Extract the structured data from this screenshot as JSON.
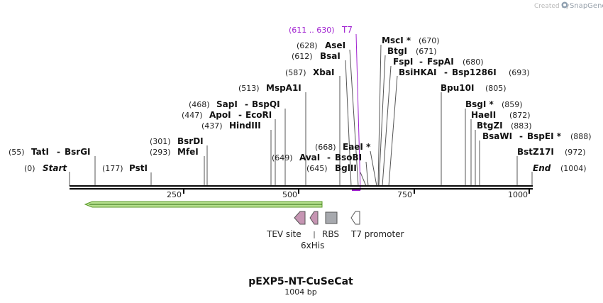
{
  "credit": {
    "prefix": "Created by",
    "brand": "SnapGene"
  },
  "map": {
    "name": "pEXP5-NT-CuSeCat",
    "length_label": "1004 bp",
    "length": 1004,
    "ticks": [
      {
        "label": "250"
      },
      {
        "label": "500"
      },
      {
        "label": "750"
      },
      {
        "label": "1000"
      }
    ]
  },
  "primer": {
    "name": "T7",
    "range": "(611 .. 630)",
    "color": "#a020d0"
  },
  "enzymes": [
    {
      "id": "start",
      "name": "Start",
      "pos": "(0)"
    },
    {
      "id": "tati",
      "name": "TatI",
      "sep": "-",
      "name2": "BsrGI",
      "pos": "(55)"
    },
    {
      "id": "psti",
      "name": "PstI",
      "pos": "(177)"
    },
    {
      "id": "mfei",
      "name": "MfeI",
      "pos": "(293)"
    },
    {
      "id": "bsrdi",
      "name": "BsrDI",
      "pos": "(301)"
    },
    {
      "id": "hindiii",
      "name": "HindIII",
      "pos": "(437)"
    },
    {
      "id": "apoi",
      "name": "ApoI",
      "sep": "-",
      "name2": "EcoRI",
      "pos": "(447)"
    },
    {
      "id": "sapi",
      "name": "SapI",
      "sep": "-",
      "name2": "BspQI",
      "pos": "(468)"
    },
    {
      "id": "mspa1i",
      "name": "MspA1I",
      "pos": "(513)"
    },
    {
      "id": "xbai",
      "name": "XbaI",
      "pos": "(587)"
    },
    {
      "id": "bsai",
      "name": "BsaI",
      "pos": "(612)"
    },
    {
      "id": "asei",
      "name": "AseI",
      "pos": "(628)"
    },
    {
      "id": "bglii",
      "name": "BglII",
      "pos": "(645)"
    },
    {
      "id": "avai",
      "name": "AvaI",
      "sep": "-",
      "name2": "BsoBI",
      "pos": "(649)"
    },
    {
      "id": "eaei",
      "name": "EaeI *",
      "pos": "(668)"
    },
    {
      "id": "msci",
      "name": "MscI *",
      "pos": "(670)"
    },
    {
      "id": "btgi",
      "name": "BtgI",
      "pos": "(671)"
    },
    {
      "id": "fspi",
      "name": "FspI",
      "sep": "-",
      "name2": "FspAI",
      "pos": "(680)"
    },
    {
      "id": "bsihkai",
      "name": "BsiHKAI",
      "sep": "-",
      "name2": "Bsp1286I",
      "pos": "(693)"
    },
    {
      "id": "bpu10i",
      "name": "Bpu10I",
      "pos": "(805)"
    },
    {
      "id": "bsgi",
      "name": "BsgI *",
      "pos": "(859)"
    },
    {
      "id": "haeii",
      "name": "HaeII",
      "pos": "(872)"
    },
    {
      "id": "btgzi",
      "name": "BtgZI",
      "pos": "(883)"
    },
    {
      "id": "bsawi",
      "name": "BsaWI",
      "sep": "-",
      "name2": "BspEI *",
      "pos": "(888)"
    },
    {
      "id": "bstz17i",
      "name": "BstZ17I",
      "pos": "(972)"
    },
    {
      "id": "end",
      "name": "End",
      "pos": "(1004)"
    }
  ],
  "features": {
    "tev": "TEV site",
    "his": "6xHis",
    "rbs": "RBS",
    "t7": "T7 promoter"
  },
  "colors": {
    "backbone": "#111111",
    "cds_fill": "#b6e08e",
    "cds_stroke": "#5c9a2c",
    "tev_fill": "#c695b3",
    "his_fill": "#c695b3",
    "rbs_fill": "#a7a9ae",
    "promoter_fill": "#ffffff"
  }
}
